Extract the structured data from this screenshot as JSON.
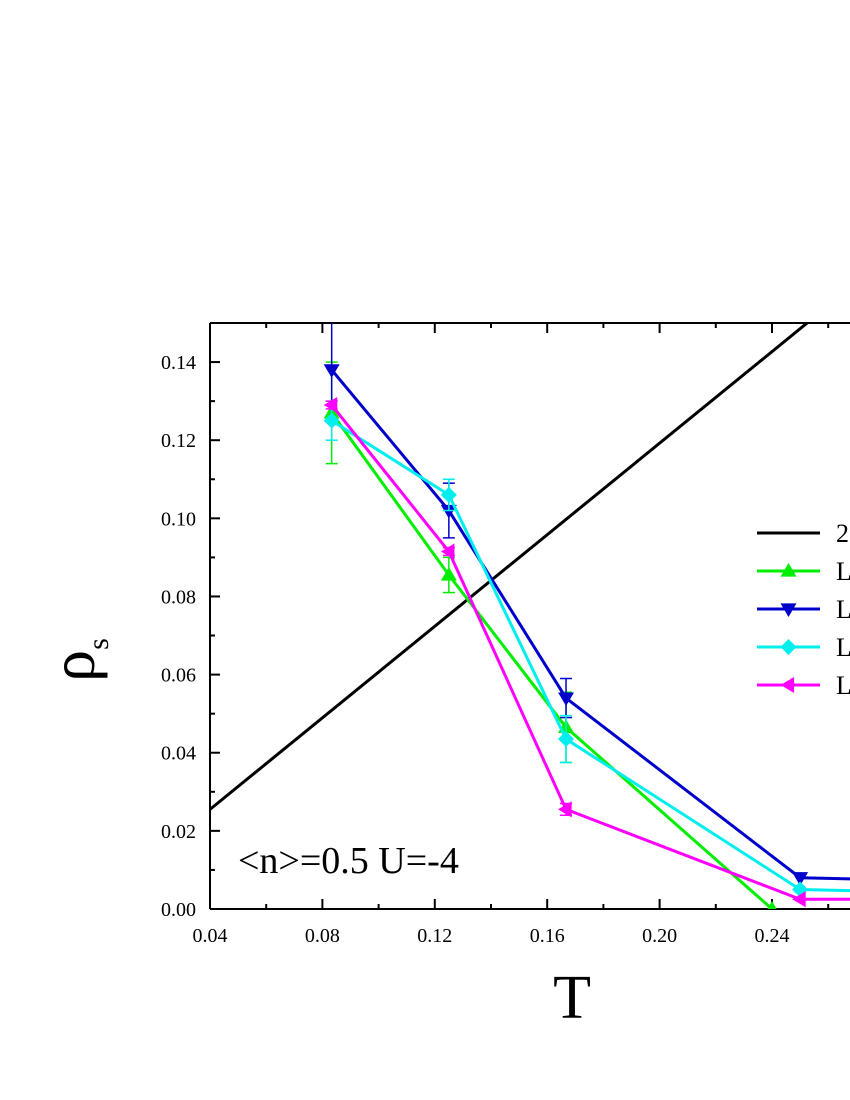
{
  "chart_data": {
    "type": "line",
    "title": "",
    "xlabel": "T",
    "ylabel": "ρ",
    "ylabel_subscript": "s",
    "xlim": [
      0.04,
      0.28
    ],
    "ylim": [
      0.0,
      0.15
    ],
    "xticks": [
      0.04,
      0.08,
      0.12,
      0.16,
      0.2,
      0.24
    ],
    "xtick_labels": [
      "0.04",
      "0.08",
      "0.12",
      "0.16",
      "0.20",
      "0.24"
    ],
    "yticks": [
      0.0,
      0.02,
      0.04,
      0.06,
      0.08,
      0.1,
      0.12,
      0.14
    ],
    "ytick_labels": [
      "0.00",
      "0.02",
      "0.04",
      "0.06",
      "0.08",
      "0.10",
      "0.12",
      "0.14"
    ],
    "annotation": "<n>=0.5 U=-4",
    "legend_position": "right",
    "series": [
      {
        "name": "2",
        "color": "#000000",
        "marker": "none",
        "x": [
          0.04,
          0.2525
        ],
        "y": [
          0.0255,
          0.15
        ],
        "err": null
      },
      {
        "name": "L",
        "color": "#00ee00",
        "marker": "triangle-up",
        "x": [
          0.0833,
          0.125,
          0.1667,
          0.24
        ],
        "y": [
          0.127,
          0.0855,
          0.0465,
          0.0
        ],
        "err": [
          0.013,
          0.0045,
          0.009,
          0.0
        ]
      },
      {
        "name": "L",
        "color": "#0000cc",
        "marker": "triangle-down",
        "x": [
          0.0833,
          0.125,
          0.1667,
          0.25,
          0.28
        ],
        "y": [
          0.138,
          0.102,
          0.054,
          0.008,
          0.0075
        ],
        "err": [
          0.013,
          0.007,
          0.005,
          0.0,
          0.0
        ]
      },
      {
        "name": "L",
        "color": "#00eeee",
        "marker": "diamond",
        "x": [
          0.0833,
          0.125,
          0.1667,
          0.25,
          0.28
        ],
        "y": [
          0.125,
          0.106,
          0.0435,
          0.005,
          0.0045
        ],
        "err": [
          0.005,
          0.004,
          0.006,
          0.0,
          0.0
        ]
      },
      {
        "name": "L",
        "color": "#ff00ff",
        "marker": "triangle-left",
        "x": [
          0.0833,
          0.125,
          0.1667,
          0.25,
          0.28
        ],
        "y": [
          0.129,
          0.0915,
          0.0255,
          0.0025,
          0.0025
        ],
        "err": [
          0.001,
          0.001,
          0.0015,
          0.0,
          0.0
        ]
      }
    ]
  }
}
